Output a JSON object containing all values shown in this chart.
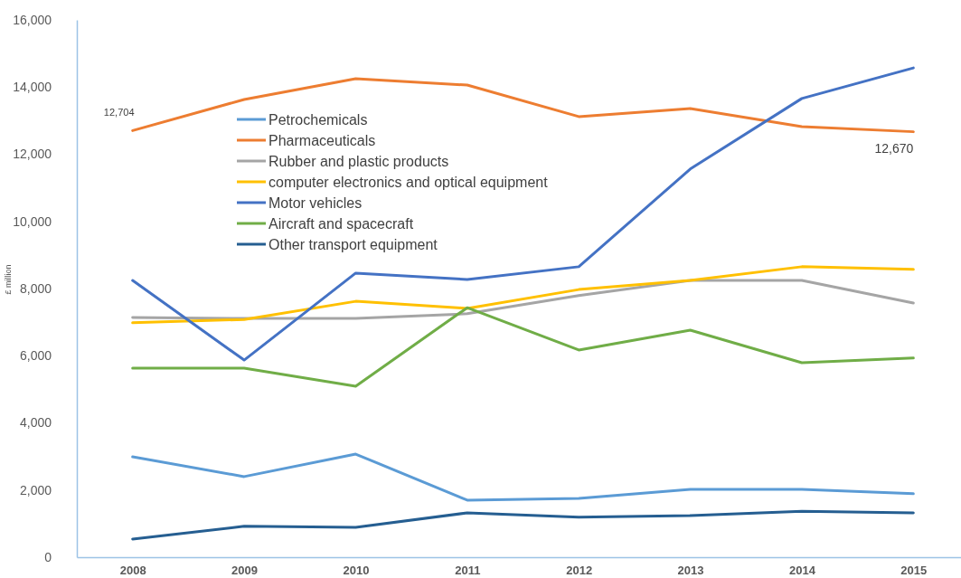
{
  "chart_data": {
    "type": "line",
    "ylabel": "£ million",
    "categories": [
      "2008",
      "2009",
      "2010",
      "2011",
      "2012",
      "2013",
      "2014",
      "2015"
    ],
    "ylim": [
      0,
      16000
    ],
    "yticks": [
      0,
      {
        "value": 2000,
        "label": "2,000"
      },
      {
        "value": 4000,
        "label": "4,000"
      },
      {
        "value": 6000,
        "label": "6,000"
      },
      {
        "value": 8000,
        "label": "8,000"
      },
      {
        "value": 10000,
        "label": "10,000"
      },
      {
        "value": 12000,
        "label": "12,000"
      },
      {
        "value": 14000,
        "label": "14,000"
      },
      {
        "value": 16000,
        "label": "16,000"
      }
    ],
    "grid": false,
    "legend": "top left",
    "series": [
      {
        "name": "Petrochemicals",
        "color": "#5b9bd5",
        "values": [
          2990,
          2400,
          3070,
          1700,
          1750,
          2020,
          2020,
          1890
        ]
      },
      {
        "name": "Pharmaceuticals",
        "color": "#ed7d31",
        "values": [
          12704,
          13630,
          14250,
          14060,
          13120,
          13360,
          12820,
          12670
        ],
        "value_labels": [
          "12,704",
          null,
          null,
          null,
          null,
          null,
          null,
          "12,670"
        ]
      },
      {
        "name": "Rubber and plastic products",
        "color": "#a5a5a5",
        "values": [
          7140,
          7110,
          7110,
          7250,
          7790,
          8240,
          8240,
          7570
        ]
      },
      {
        "name": "computer electronics and optical equipment",
        "color": "#ffc000",
        "values": [
          6980,
          7080,
          7620,
          7410,
          7970,
          8240,
          8650,
          8570
        ]
      },
      {
        "name": "Motor vehicles",
        "color": "#4472c4",
        "values": [
          8240,
          5870,
          8460,
          8270,
          8650,
          11560,
          13660,
          14570
        ]
      },
      {
        "name": "Aircraft and spacecraft",
        "color": "#70ad47",
        "values": [
          5630,
          5630,
          5090,
          7430,
          6170,
          6760,
          5790,
          5930
        ]
      },
      {
        "name": "Other transport equipment",
        "color": "#255e91",
        "values": [
          540,
          920,
          890,
          1320,
          1190,
          1240,
          1370,
          1320
        ]
      }
    ]
  }
}
